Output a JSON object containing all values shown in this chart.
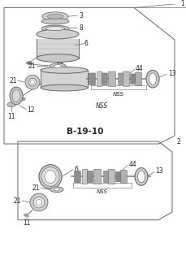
{
  "bg_color": "#ffffff",
  "line_color": "#666666",
  "dark_color": "#222222",
  "label_fontsize": 5.5,
  "diagram_label": "B-19-10",
  "box1_label": "1",
  "box2_label": "2"
}
